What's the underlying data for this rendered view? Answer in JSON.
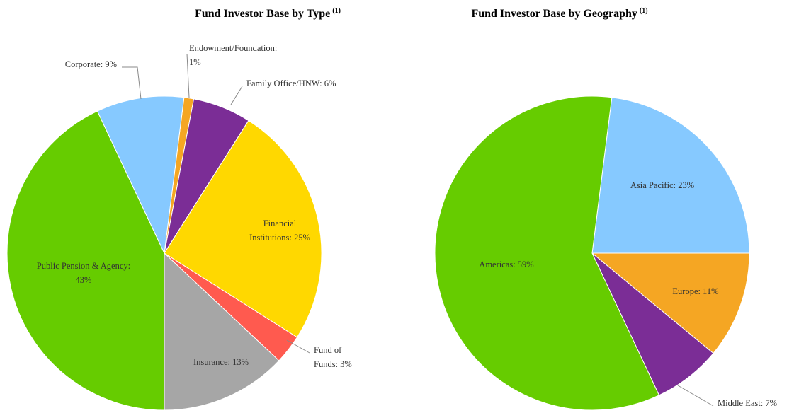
{
  "chart_data": [
    {
      "type": "pie",
      "title": "Fund Investor Base by Type",
      "title_superscript": "(1)",
      "labels": [
        [
          "Endowment/Foundation:",
          "1%"
        ],
        [
          "Family Office/HNW: 6%"
        ],
        [
          "Financial",
          "Institutions: 25%"
        ],
        [
          "Fund of",
          "Funds: 3%"
        ],
        [
          "Insurance: 13%"
        ],
        [
          "Public Pension & Agency:",
          "43%"
        ],
        [
          "Corporate: 9%"
        ]
      ],
      "values": [
        1,
        6,
        25,
        3,
        13,
        43,
        9
      ],
      "colors": [
        "#f5a623",
        "#7b2d96",
        "#ffd800",
        "#ff5a4f",
        "#a6a6a6",
        "#66cc00",
        "#86c9ff"
      ]
    },
    {
      "type": "pie",
      "title": "Fund Investor Base by Geography",
      "title_superscript": "(1)",
      "labels": [
        [
          "Asia Pacific: 23%"
        ],
        [
          "Europe: 11%"
        ],
        [
          "Middle East: 7%"
        ],
        [
          "Americas: 59%"
        ]
      ],
      "values": [
        23,
        11,
        7,
        59
      ],
      "colors": [
        "#86c9ff",
        "#f5a623",
        "#7b2d96",
        "#66cc00"
      ]
    }
  ]
}
